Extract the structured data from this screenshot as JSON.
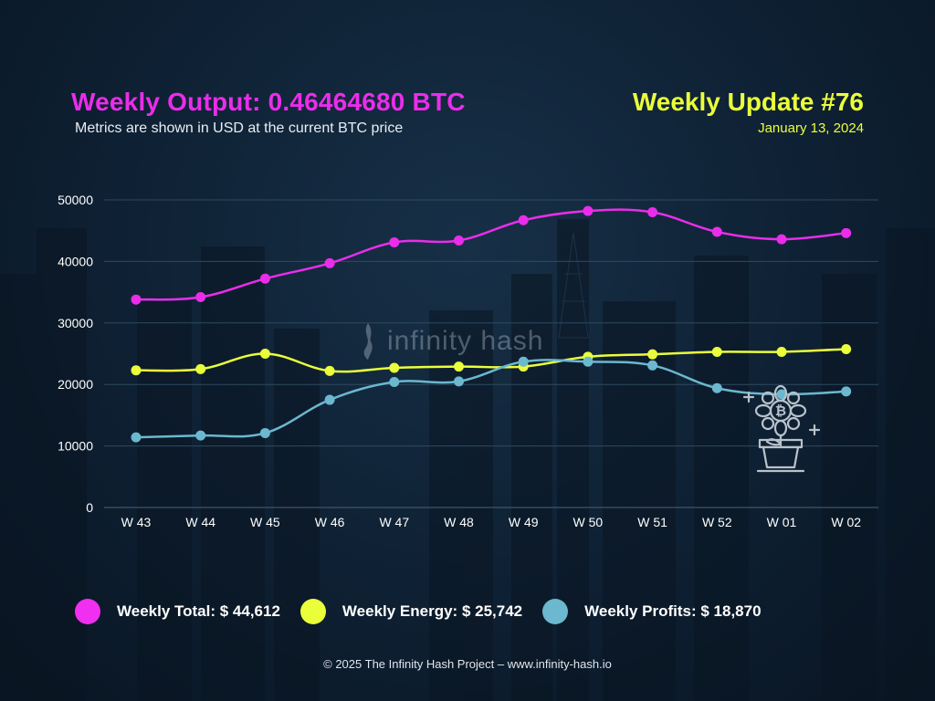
{
  "header": {
    "title": "Weekly Output: 0.46464680 BTC",
    "subtitle": "Metrics are shown in USD at the current BTC price",
    "update_title": "Weekly Update #76",
    "update_date": "January 13, 2024"
  },
  "watermark": {
    "text": "infinity hash"
  },
  "legend": [
    {
      "label": "Weekly Total: $ 44,612",
      "color": "#f02ff0"
    },
    {
      "label": "Weekly Energy: $ 25,742",
      "color": "#eaff3a"
    },
    {
      "label": "Weekly Profits: $ 18,870",
      "color": "#6bb8cf"
    }
  ],
  "footer": "© 2025 The Infinity Hash Project – www.infinity-hash.io",
  "icons": {
    "plant": "bitcoin-plant-icon",
    "watermark": "flame-logo-icon"
  },
  "chart_data": {
    "type": "line",
    "categories": [
      "W 43",
      "W 44",
      "W 45",
      "W 46",
      "W 47",
      "W 48",
      "W 49",
      "W 50",
      "W 51",
      "W 52",
      "W 01",
      "W 02"
    ],
    "yticks": [
      0,
      10000,
      20000,
      30000,
      40000,
      50000
    ],
    "ylim": [
      0,
      50000
    ],
    "grid": true,
    "legend_position": "bottom",
    "series": [
      {
        "key": "total",
        "color": "#ea2dea",
        "values": [
          33800,
          34200,
          37200,
          39700,
          43100,
          43400,
          46700,
          48200,
          48000,
          44800,
          43600,
          44612
        ]
      },
      {
        "key": "energy",
        "color": "#eaff3a",
        "values": [
          22300,
          22500,
          25000,
          22200,
          22700,
          22900,
          22900,
          24500,
          24900,
          25300,
          25300,
          25742
        ]
      },
      {
        "key": "profits",
        "color": "#6bb8cf",
        "values": [
          11400,
          11700,
          12100,
          17500,
          20400,
          20500,
          23700,
          23700,
          23100,
          19400,
          18400,
          18870
        ]
      }
    ]
  }
}
